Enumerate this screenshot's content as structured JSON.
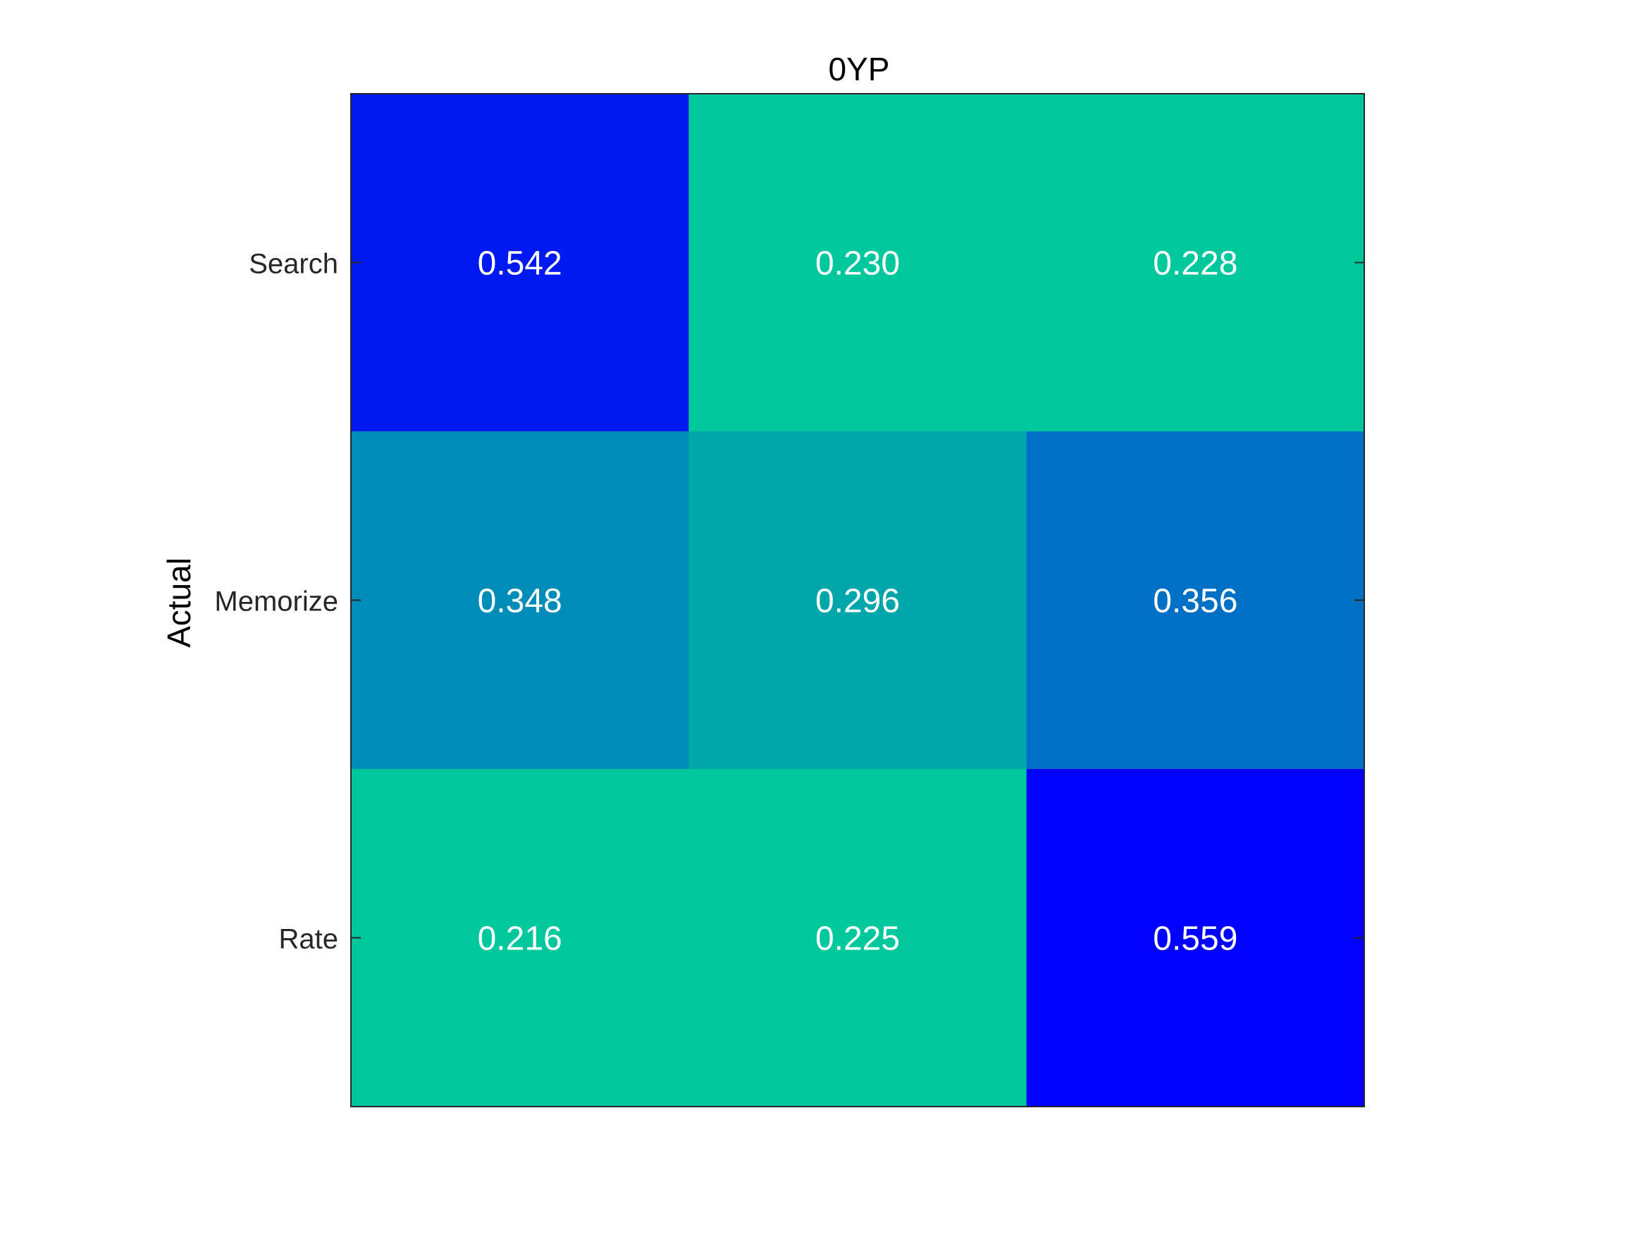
{
  "chart_data": {
    "type": "heatmap",
    "title": "0YP",
    "xlabel": "",
    "ylabel": "Actual",
    "row_labels": [
      "Search",
      "Memorize",
      "Rate"
    ],
    "column_labels": [],
    "values": [
      [
        0.542,
        0.23,
        0.228
      ],
      [
        0.348,
        0.296,
        0.356
      ],
      [
        0.216,
        0.225,
        0.559
      ]
    ],
    "value_format": "3 decimals",
    "colormap": {
      "low": "#00c89c",
      "high": "#0000ff"
    },
    "cell_colors": [
      [
        "#0019f0",
        "#00c89c",
        "#00c89c"
      ],
      [
        "#008cb8",
        "#00a6aa",
        "#0070c6"
      ],
      [
        "#00c89c",
        "#00c89c",
        "#0000ff"
      ]
    ],
    "label_color": "#ffffff",
    "grid": false,
    "legend": "none"
  }
}
